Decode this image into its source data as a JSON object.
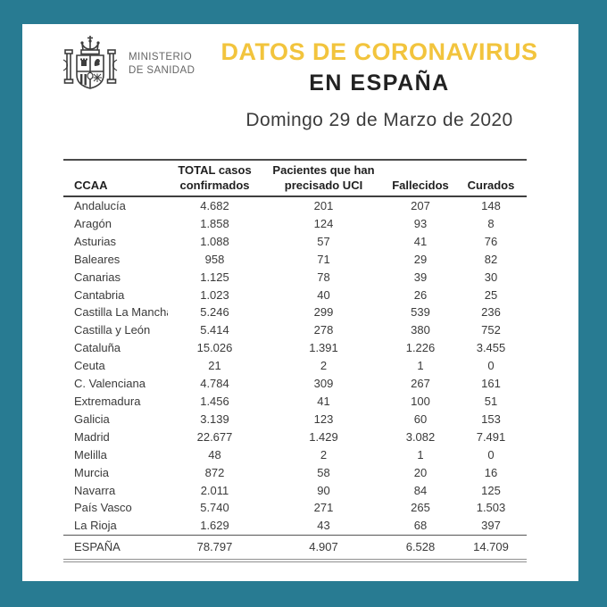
{
  "colors": {
    "frame_teal": "#287B92",
    "title_yellow": "#F2C43D",
    "title_dark": "#222222",
    "ministry_gray": "#666666",
    "table_text": "#3a3a3a"
  },
  "header": {
    "coat_of_arms_icon": "spanish-coat-of-arms",
    "ministry_name_line1": "MINISTERIO",
    "ministry_name_line2": "DE SANIDAD",
    "title_line1": "DATOS DE CORONAVIRUS",
    "title_line2": "EN ESPAÑA",
    "date": "Domingo 29 de Marzo de 2020"
  },
  "table": {
    "columns": [
      {
        "lines": [
          "CCAA"
        ],
        "align": "left"
      },
      {
        "lines": [
          "TOTAL casos",
          "confirmados"
        ],
        "align": "center"
      },
      {
        "lines": [
          "Pacientes que han",
          "precisado UCI"
        ],
        "align": "center"
      },
      {
        "lines": [
          "Fallecidos"
        ],
        "align": "center"
      },
      {
        "lines": [
          "Curados"
        ],
        "align": "center"
      }
    ],
    "rows": [
      {
        "ccaa": "Andalucía",
        "values": [
          "4.682",
          "201",
          "207",
          "148"
        ]
      },
      {
        "ccaa": "Aragón",
        "values": [
          "1.858",
          "124",
          "93",
          "8"
        ]
      },
      {
        "ccaa": "Asturias",
        "values": [
          "1.088",
          "57",
          "41",
          "76"
        ]
      },
      {
        "ccaa": "Baleares",
        "values": [
          "958",
          "71",
          "29",
          "82"
        ]
      },
      {
        "ccaa": "Canarias",
        "values": [
          "1.125",
          "78",
          "39",
          "30"
        ]
      },
      {
        "ccaa": "Cantabria",
        "values": [
          "1.023",
          "40",
          "26",
          "25"
        ]
      },
      {
        "ccaa": "Castilla La Mancha",
        "values": [
          "5.246",
          "299",
          "539",
          "236"
        ]
      },
      {
        "ccaa": "Castilla y León",
        "values": [
          "5.414",
          "278",
          "380",
          "752"
        ]
      },
      {
        "ccaa": "Cataluña",
        "values": [
          "15.026",
          "1.391",
          "1.226",
          "3.455"
        ]
      },
      {
        "ccaa": "Ceuta",
        "values": [
          "21",
          "2",
          "1",
          "0"
        ]
      },
      {
        "ccaa": "C. Valenciana",
        "values": [
          "4.784",
          "309",
          "267",
          "161"
        ]
      },
      {
        "ccaa": "Extremadura",
        "values": [
          "1.456",
          "41",
          "100",
          "51"
        ]
      },
      {
        "ccaa": "Galicia",
        "values": [
          "3.139",
          "123",
          "60",
          "153"
        ]
      },
      {
        "ccaa": "Madrid",
        "values": [
          "22.677",
          "1.429",
          "3.082",
          "7.491"
        ]
      },
      {
        "ccaa": "Melilla",
        "values": [
          "48",
          "2",
          "1",
          "0"
        ]
      },
      {
        "ccaa": "Murcia",
        "values": [
          "872",
          "58",
          "20",
          "16"
        ]
      },
      {
        "ccaa": "Navarra",
        "values": [
          "2.011",
          "90",
          "84",
          "125"
        ]
      },
      {
        "ccaa": "País Vasco",
        "values": [
          "5.740",
          "271",
          "265",
          "1.503"
        ]
      },
      {
        "ccaa": "La Rioja",
        "values": [
          "1.629",
          "43",
          "68",
          "397"
        ]
      }
    ],
    "total_row": {
      "ccaa": "ESPAÑA",
      "values": [
        "78.797",
        "4.907",
        "6.528",
        "14.709"
      ]
    }
  }
}
